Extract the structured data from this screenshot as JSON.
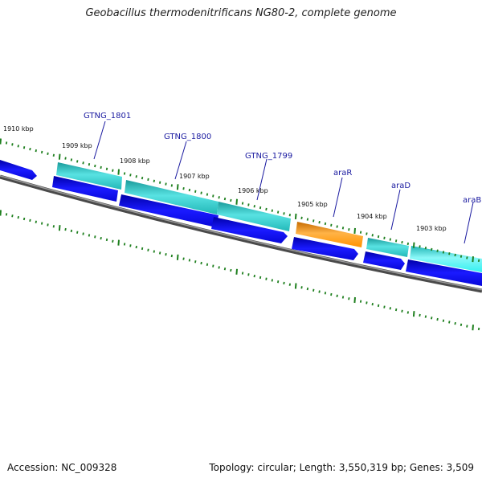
{
  "title": "Geobacillus thermodenitrificans NG80-2, complete genome",
  "footer": {
    "accession": "Accession: NC_009328",
    "topology": "Topology: circular; Length: 3,550,319 bp; Genes: 3,509"
  },
  "kbp_labels": [
    "1910 kbp",
    "1909 kbp",
    "1908 kbp",
    "1907 kbp",
    "1906 kbp",
    "1905 kbp",
    "1904 kbp",
    "1903 kbp"
  ],
  "genes": [
    {
      "label": "GTNG_1801",
      "color": "#2fc9c9"
    },
    {
      "label": "GTNG_1800",
      "color": "#2fc9c9"
    },
    {
      "label": "GTNG_1799",
      "color": "#2fc9c9"
    },
    {
      "label": "araR",
      "color": "#ff9200"
    },
    {
      "label": "araD",
      "color": "#2fc9c9"
    },
    {
      "label": "araB",
      "color": "#33f0f0"
    }
  ],
  "colors": {
    "cds_forward": "#1010e6",
    "backbone": "#808080",
    "tick": "#1e7f1e",
    "label_link": "#1a1aa0"
  },
  "icons": {
    "strand_direction": "right-arrow"
  }
}
